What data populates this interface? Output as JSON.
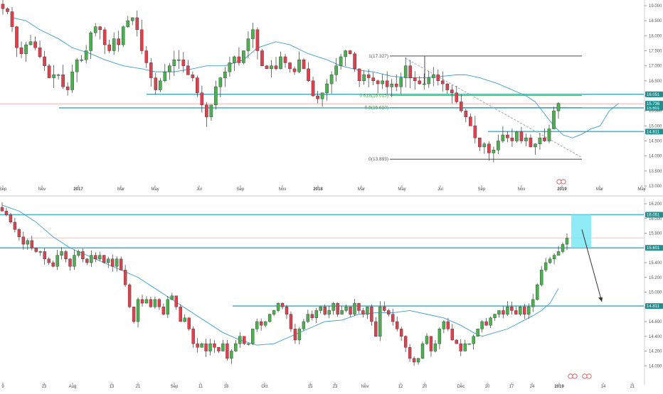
{
  "colors": {
    "up": "#4caf50",
    "down": "#e0404e",
    "line": "#4fb6c9",
    "ma": "#3e9dd2",
    "fib": "#4a4a4a",
    "tag": "#1f8f8f",
    "tagBlue": "#3a8fc0",
    "highlight": "#7be7f5",
    "price": "#f0a8a8"
  },
  "chart_data": [
    {
      "type": "candlestick",
      "timeframe": "weekly",
      "ylim": [
        13.0,
        19.0
      ],
      "y_ticks": [
        "19.000",
        "18.500",
        "18.000",
        "17.500",
        "17.000",
        "16.500",
        "16.000",
        "15.500",
        "15.000",
        "14.500",
        "14.000",
        "13.500",
        "13.000"
      ],
      "x_ticks": [
        "Sep",
        "Nov",
        "2017",
        "Mar",
        "May",
        "Jul",
        "Sep",
        "Nov",
        "2018",
        "Mar",
        "May",
        "Jul",
        "Sep",
        "Nov",
        "2019",
        "Mar",
        "May"
      ],
      "x_ticks_bold": [
        "2017",
        "2018",
        "2019"
      ],
      "closes": [
        18.9,
        18.8,
        18.3,
        17.6,
        17.4,
        17.7,
        17.8,
        17.6,
        17.3,
        17.0,
        16.6,
        16.7,
        16.7,
        16.3,
        16.2,
        16.8,
        17.2,
        17.2,
        17.5,
        18.1,
        18.3,
        18.2,
        17.7,
        17.5,
        17.9,
        17.7,
        18.3,
        18.5,
        18.6,
        18.2,
        17.5,
        17.1,
        16.6,
        16.2,
        16.5,
        16.8,
        17.0,
        17.2,
        17.2,
        17.0,
        16.7,
        16.6,
        16.1,
        15.7,
        15.3,
        15.7,
        16.3,
        16.6,
        16.8,
        17.1,
        17.3,
        17.1,
        17.5,
        17.9,
        18.2,
        17.5,
        17.0,
        16.9,
        17.0,
        16.9,
        17.3,
        17.1,
        16.9,
        16.8,
        17.2,
        16.9,
        16.5,
        16.0,
        15.9,
        16.1,
        16.4,
        16.7,
        17.0,
        17.3,
        17.5,
        17.4,
        16.9,
        16.5,
        16.7,
        16.6,
        16.5,
        16.4,
        16.5,
        16.3,
        16.4,
        16.3,
        16.6,
        17.0,
        16.6,
        16.5,
        16.4,
        16.4,
        16.6,
        16.7,
        16.5,
        16.4,
        16.2,
        16.1,
        15.8,
        15.5,
        15.3,
        15.0,
        14.6,
        14.3,
        14.4,
        14.1,
        14.2,
        14.5,
        14.7,
        14.6,
        14.5,
        14.8,
        14.5,
        14.6,
        14.3,
        14.4,
        14.6,
        14.5,
        14.9,
        15.5,
        15.75
      ],
      "ma": [
        18.6,
        18.5,
        18.2,
        17.9,
        17.6,
        17.4,
        17.2,
        17.0,
        16.9,
        16.8,
        16.8,
        16.9,
        17.0,
        17.0,
        17.2,
        17.6,
        17.8,
        17.7,
        17.4,
        17.2,
        17.0,
        16.85,
        16.8,
        16.65,
        16.6,
        16.6,
        16.65,
        16.7,
        16.7,
        16.6,
        16.5,
        16.4,
        16.2,
        16.0,
        15.8,
        15.4,
        15.0,
        14.7,
        14.6,
        14.72,
        14.9,
        15.0,
        15.5,
        15.75
      ],
      "ma_index": [
        2,
        5,
        8,
        12,
        15,
        19,
        22,
        26,
        30,
        33,
        37,
        41,
        44,
        48,
        52,
        55,
        59,
        62,
        66,
        70,
        73,
        77,
        80,
        84,
        88,
        91,
        95,
        98,
        100,
        103,
        105,
        107,
        110,
        113,
        115,
        117,
        119,
        121,
        123,
        125,
        127,
        129,
        131,
        133
      ],
      "levels": [
        {
          "value": 16.051,
          "label": "16.051"
        },
        {
          "value": 15.601,
          "label": "15.601"
        },
        {
          "value": 14.811,
          "label": "14.811"
        }
      ],
      "current": {
        "value": 15.736,
        "label": "15.736"
      },
      "fibonacci": [
        {
          "label": "1(17.327)",
          "value": 17.327
        },
        {
          "label": "0.618(16.015)",
          "value": 16.015
        },
        {
          "label": "0.5(15.610)",
          "value": 15.61
        },
        {
          "label": "0(13.893)",
          "value": 13.893
        }
      ]
    },
    {
      "type": "candlestick",
      "timeframe": "daily",
      "ylim": [
        13.8,
        16.2
      ],
      "y_ticks": [
        "16.200",
        "16.000",
        "15.800",
        "15.600",
        "15.400",
        "15.200",
        "15.000",
        "14.800",
        "14.600",
        "14.400",
        "14.200",
        "14.000"
      ],
      "x_ticks": [
        "9",
        "23",
        "Aug",
        "13",
        "21",
        "Sep",
        "11",
        "18",
        "Oct",
        "15",
        "23",
        "Nov",
        "12",
        "20",
        "Dec",
        "10",
        "17",
        "24",
        "2019",
        "14",
        "21"
      ],
      "x_ticks_bold": [
        "2019"
      ],
      "closes": [
        16.1,
        16.05,
        15.95,
        15.85,
        15.75,
        15.65,
        15.7,
        15.6,
        15.55,
        15.55,
        15.45,
        15.4,
        15.35,
        15.5,
        15.55,
        15.45,
        15.35,
        15.5,
        15.55,
        15.45,
        15.4,
        15.5,
        15.45,
        15.5,
        15.4,
        15.45,
        15.35,
        15.45,
        15.3,
        15.1,
        14.8,
        14.6,
        14.9,
        14.85,
        14.9,
        14.8,
        14.9,
        14.8,
        14.7,
        14.9,
        14.95,
        14.8,
        14.6,
        14.65,
        14.5,
        14.3,
        14.25,
        14.3,
        14.2,
        14.3,
        14.25,
        14.2,
        14.3,
        14.1,
        14.2,
        14.3,
        14.4,
        14.3,
        14.3,
        14.5,
        14.6,
        14.55,
        14.6,
        14.7,
        14.75,
        14.85,
        14.8,
        14.7,
        14.5,
        14.35,
        14.5,
        14.6,
        14.7,
        14.65,
        14.75,
        14.8,
        14.7,
        14.75,
        14.85,
        14.7,
        14.75,
        14.8,
        14.7,
        14.85,
        14.75,
        14.7,
        14.8,
        14.6,
        14.4,
        14.8,
        14.75,
        14.7,
        14.6,
        14.5,
        14.4,
        14.25,
        14.1,
        14.05,
        14.1,
        14.3,
        14.4,
        14.2,
        14.3,
        14.5,
        14.6,
        14.5,
        14.35,
        14.3,
        14.2,
        14.3,
        14.3,
        14.4,
        14.5,
        14.6,
        14.55,
        14.65,
        14.7,
        14.75,
        14.7,
        14.8,
        14.75,
        14.7,
        14.8,
        14.7,
        14.8,
        14.9,
        15.1,
        15.3,
        15.4,
        15.45,
        15.5,
        15.55,
        15.65,
        15.73
      ],
      "ma": [
        16.18,
        16.1,
        15.95,
        15.75,
        15.6,
        15.5,
        15.4,
        15.3,
        15.2,
        15.05,
        14.9,
        14.75,
        14.6,
        14.45,
        14.35,
        14.28,
        14.3,
        14.4,
        14.5,
        14.6,
        14.62,
        14.7,
        14.72,
        14.72,
        14.75,
        14.7,
        14.65,
        14.55,
        14.45,
        14.4,
        14.45,
        14.5,
        14.56,
        14.62,
        14.68,
        14.75,
        14.85,
        15.05
      ],
      "ma_index": [
        0,
        4,
        8,
        12,
        16,
        20,
        24,
        28,
        32,
        36,
        40,
        44,
        48,
        52,
        56,
        60,
        64,
        68,
        72,
        76,
        80,
        84,
        88,
        92,
        96,
        100,
        104,
        108,
        111,
        113,
        116,
        119,
        121,
        123,
        125,
        127,
        129,
        131
      ],
      "levels": [
        {
          "value": 16.051,
          "label": "16.051"
        },
        {
          "value": 15.601,
          "label": "15.601"
        },
        {
          "value": 14.811,
          "label": "14.811"
        }
      ],
      "current": {
        "value": 15.736
      },
      "target_box": {
        "from": 15.601,
        "to": 16.051
      },
      "forecast": {
        "from": 15.85,
        "to": 14.87
      }
    }
  ]
}
